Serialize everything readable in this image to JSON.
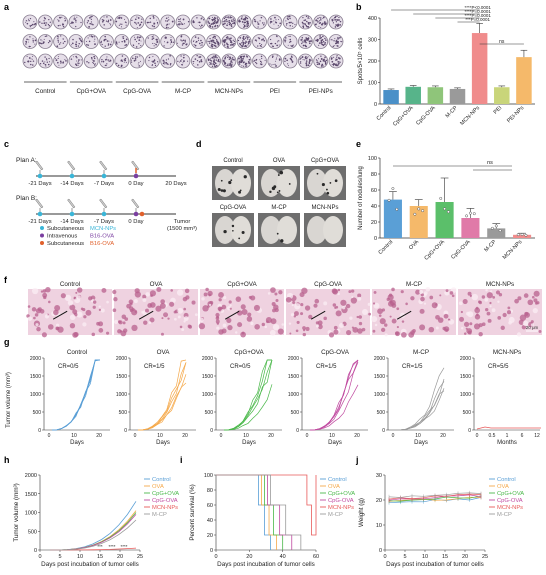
{
  "panel_letters": [
    "a",
    "b",
    "c",
    "d",
    "e",
    "f",
    "g",
    "h",
    "i",
    "j"
  ],
  "panel_a": {
    "groups": [
      "Control",
      "CpG+OVA",
      "CpG-OVA",
      "M-CP",
      "MCN-NPs",
      "PEI",
      "PEI-NPs"
    ],
    "density": [
      1,
      1,
      1,
      1,
      3,
      1,
      2
    ]
  },
  "panel_b": {
    "ylabel": "Spots/5×10⁵ cells",
    "yticks": [
      "0",
      "100",
      "200",
      "300",
      "400"
    ],
    "groups": [
      "Control",
      "CpG+OVA",
      "CpG-OVA",
      "M-CP",
      "MCN-NPs",
      "PEI",
      "PEI-NPs"
    ],
    "values": [
      65,
      80,
      78,
      70,
      330,
      78,
      218
    ],
    "errors": [
      5,
      6,
      6,
      5,
      45,
      6,
      32
    ],
    "colors": [
      "#4a90c8",
      "#57b48a",
      "#8fc57a",
      "#9a9a9a",
      "#f08c8c",
      "#c9d57a",
      "#f5b96a"
    ],
    "sig": [
      "****P<0.0001",
      "****P=0.0001",
      "****P=0.0001",
      "***P=0.0001",
      "ns"
    ]
  },
  "panel_c": {
    "plan_a": "Plan A:",
    "plan_b": "Plan B:",
    "days": [
      "-21 Days",
      "-14 Days",
      "-7 Days",
      "0 Day"
    ],
    "end_a": "20 Days",
    "end_b": "Tumor",
    "end_b2": "(1500 mm³)",
    "legend": [
      {
        "label": "Subcutaneous",
        "value": "MCN-NPs",
        "color": "#3ab6d8"
      },
      {
        "label": "Intravenous",
        "value": "B16-OVA",
        "color": "#7a3ea0"
      },
      {
        "label": "Subcutaneous",
        "value": "B16-OVA",
        "color": "#e0602c"
      }
    ]
  },
  "panel_d": {
    "labels": [
      "Control",
      "OVA",
      "CpG+OVA",
      "CpG-OVA",
      "M-CP",
      "MCN-NPs"
    ]
  },
  "panel_e": {
    "ylabel": "Number of nodules/lung",
    "yticks": [
      "0",
      "20",
      "40",
      "60",
      "80",
      "100"
    ],
    "groups": [
      "Control",
      "OVA",
      "CpG+OVA",
      "CpG-OVA",
      "M-CP",
      "MCN-NPs"
    ],
    "values": [
      48,
      40,
      45,
      25,
      12,
      4
    ],
    "errors": [
      10,
      8,
      30,
      12,
      6,
      2
    ],
    "colors": [
      "#5a9fd6",
      "#f5b96a",
      "#5bbf6a",
      "#e07aa8",
      "#9a9a9a",
      "#f08c8c"
    ],
    "sig": "ns"
  },
  "panel_f": {
    "labels": [
      "Control",
      "OVA",
      "CpG+OVA",
      "CpG-OVA",
      "M-CP",
      "MCN-NPs"
    ],
    "scale": "20 μm"
  },
  "panel_g": {
    "ylabel": "Tumor volume (mm³)",
    "charts": [
      {
        "title": "Control",
        "cr": "CR=0/5",
        "color": "#5a9fd6"
      },
      {
        "title": "OVA",
        "cr": "CR=1/5",
        "color": "#f5a94a"
      },
      {
        "title": "CpG+OVA",
        "cr": "CR=0/5",
        "color": "#4ab84a"
      },
      {
        "title": "CpG-OVA",
        "cr": "CR=1/5",
        "color": "#c04aa0"
      },
      {
        "title": "M-CP",
        "cr": "CR=1/5",
        "color": "#9a9a9a"
      },
      {
        "title": "MCN-NPs",
        "cr": "CR=5/5",
        "color": "#e85a5a"
      }
    ],
    "yticks": [
      "0",
      "500",
      "1000",
      "1500",
      "2000"
    ],
    "xticks": [
      "0",
      "10",
      "20"
    ],
    "xlabel": "Days",
    "xticks_last": [
      "0",
      "0.5",
      "1",
      "6",
      "12"
    ],
    "xlabel_last": "Months"
  },
  "panel_h": {
    "ylabel": "Tumor volume (mm³)",
    "xlabel": "Days post incubation of tumor cells",
    "xticks": [
      "0",
      "5",
      "10",
      "15",
      "20",
      "25"
    ],
    "yticks": [
      "0",
      "500",
      "1000",
      "1500",
      "2000"
    ],
    "legend": [
      "Control",
      "OVA",
      "CpG+OVA",
      "CpG-OVA",
      "MCN-NPs",
      "M-CP"
    ],
    "colors": [
      "#5a9fd6",
      "#f5a94a",
      "#4ab84a",
      "#c04aa0",
      "#e85a5a",
      "#9a9a9a"
    ],
    "stars": [
      "***",
      "****",
      "****"
    ]
  },
  "panel_i": {
    "ylabel": "Percent survival (%)",
    "xlabel": "Days post incubation of tumor cells",
    "xticks": [
      "0",
      "20",
      "40",
      "60"
    ],
    "yticks": [
      "0",
      "20",
      "40",
      "60",
      "80",
      "100"
    ],
    "legend": [
      "Control",
      "OVA",
      "CpG+OVA",
      "CpG-OVA",
      "MCN-NPs",
      "M-CP"
    ],
    "colors": [
      "#5a9fd6",
      "#f5a94a",
      "#4ab84a",
      "#c04aa0",
      "#e85a5a",
      "#9a9a9a"
    ]
  },
  "panel_j": {
    "ylabel": "Weight (g)",
    "xlabel": "Days post incubation of tumor cells",
    "xticks": [
      "0",
      "5",
      "10",
      "15",
      "20",
      "25"
    ],
    "yticks": [
      "0",
      "10",
      "20",
      "30"
    ],
    "legend": [
      "Control",
      "OVA",
      "CpG+OVA",
      "CpG-OVA",
      "MCN-NPs",
      "M-CP"
    ],
    "colors": [
      "#5a9fd6",
      "#f5a94a",
      "#4ab84a",
      "#c04aa0",
      "#e85a5a",
      "#9a9a9a"
    ]
  }
}
